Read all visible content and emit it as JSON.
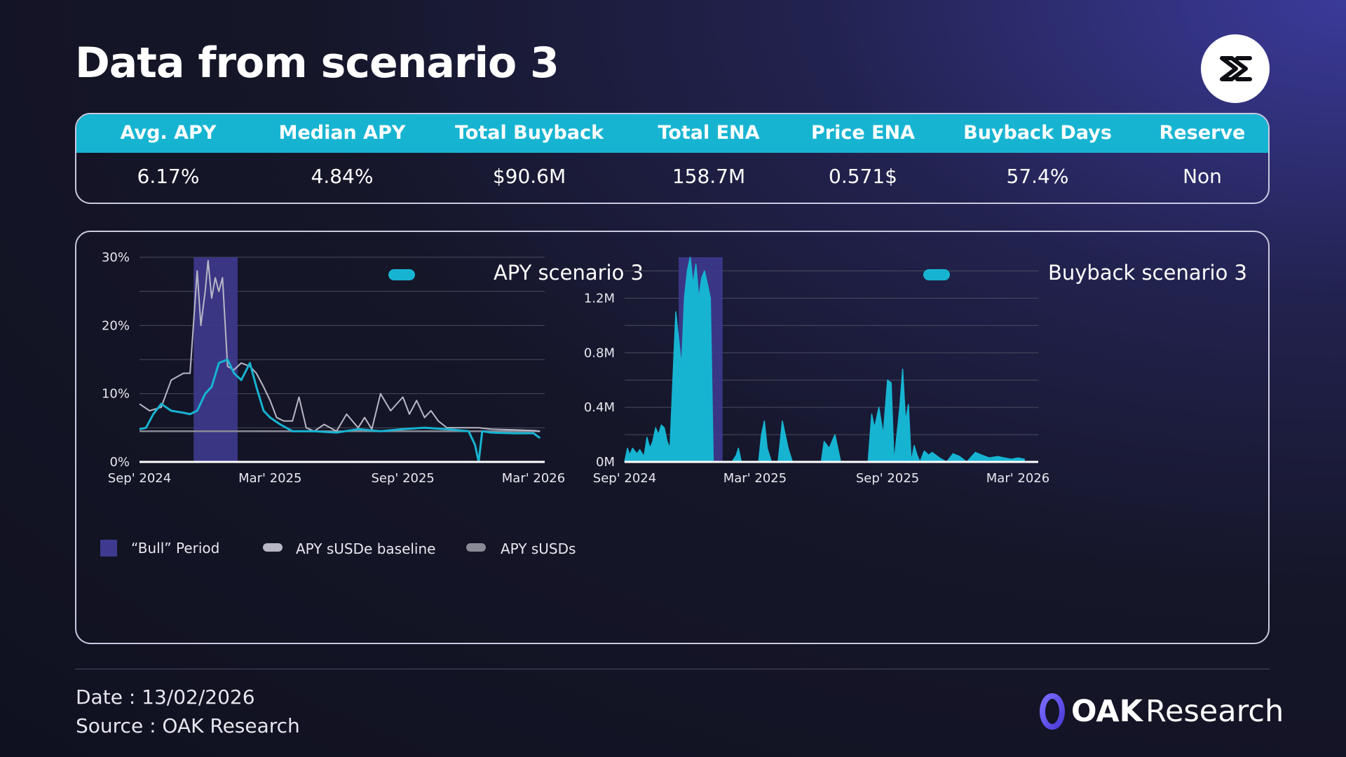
{
  "title": "Data from scenario 3",
  "logo_icon": "sigma-logo-icon",
  "stats": {
    "headers": [
      "Avg. APY",
      "Median APY",
      "Total Buyback",
      "Total ENA",
      "Price ENA",
      "Buyback Days",
      "Reserve"
    ],
    "values": [
      "6.17%",
      "4.84%",
      "$90.6M",
      "158.7M",
      "0.571$",
      "57.4%",
      "Non"
    ]
  },
  "colors": {
    "accent": "#17b4d2",
    "bull": "#3e3a8f",
    "baseline": "#b7b7c6",
    "susds": "#8a8a96",
    "background": "#151628"
  },
  "chart_data": [
    {
      "type": "line",
      "legend": "APY scenario 3",
      "x_ticks": [
        "Sep' 2024",
        "Mar' 2025",
        "Sep' 2025",
        "Mar' 2026"
      ],
      "y_ticks": [
        "0%",
        "10%",
        "20%",
        "30%"
      ],
      "ylim": [
        0,
        30
      ],
      "bull_period": [
        "2024-11-15",
        "2025-01-15"
      ],
      "series": [
        {
          "name": "APY scenario 3",
          "color": "#17b4d2",
          "x": [
            "2024-09-01",
            "2024-09-10",
            "2024-09-20",
            "2024-10-01",
            "2024-10-15",
            "2024-11-01",
            "2024-11-10",
            "2024-11-20",
            "2024-12-01",
            "2024-12-10",
            "2024-12-20",
            "2025-01-01",
            "2025-01-10",
            "2025-01-20",
            "2025-02-01",
            "2025-02-10",
            "2025-02-20",
            "2025-03-01",
            "2025-03-15",
            "2025-04-01",
            "2025-05-01",
            "2025-06-01",
            "2025-07-01",
            "2025-08-01",
            "2025-09-01",
            "2025-10-01",
            "2025-11-01",
            "2025-12-01",
            "2025-12-10",
            "2025-12-15",
            "2025-12-20",
            "2026-01-01",
            "2026-02-01",
            "2026-03-01",
            "2026-03-10"
          ],
          "values": [
            4.8,
            5.0,
            7.0,
            8.5,
            7.5,
            7.2,
            7.0,
            7.5,
            10.0,
            11.0,
            14.5,
            15.0,
            13.0,
            12.0,
            14.5,
            11.0,
            7.5,
            6.5,
            5.5,
            4.5,
            4.5,
            4.3,
            4.8,
            4.5,
            4.8,
            5.0,
            4.8,
            4.5,
            2.5,
            0.0,
            4.5,
            4.3,
            4.2,
            4.2,
            3.5
          ]
        },
        {
          "name": "APY sUSDe baseline",
          "color": "#b7b7c6",
          "x": [
            "2024-09-01",
            "2024-09-15",
            "2024-10-01",
            "2024-10-15",
            "2024-11-01",
            "2024-11-10",
            "2024-11-20",
            "2024-11-25",
            "2024-12-01",
            "2024-12-05",
            "2024-12-10",
            "2024-12-15",
            "2024-12-20",
            "2024-12-25",
            "2025-01-01",
            "2025-01-10",
            "2025-01-20",
            "2025-02-01",
            "2025-02-10",
            "2025-02-20",
            "2025-03-01",
            "2025-03-10",
            "2025-03-20",
            "2025-04-01",
            "2025-04-10",
            "2025-04-20",
            "2025-05-01",
            "2025-05-15",
            "2025-06-01",
            "2025-06-15",
            "2025-07-01",
            "2025-07-10",
            "2025-07-20",
            "2025-08-01",
            "2025-08-15",
            "2025-09-01",
            "2025-09-10",
            "2025-09-20",
            "2025-10-01",
            "2025-10-10",
            "2025-10-20",
            "2025-11-01",
            "2025-11-15",
            "2025-12-01",
            "2025-12-15",
            "2026-01-01",
            "2026-02-01",
            "2026-03-01",
            "2026-03-10"
          ],
          "values": [
            8.5,
            7.5,
            8.0,
            12.0,
            13.0,
            13.0,
            28.0,
            20.0,
            25.0,
            29.5,
            24.0,
            27.0,
            25.0,
            27.0,
            14.0,
            13.5,
            14.5,
            14.0,
            13.0,
            11.0,
            9.0,
            6.5,
            6.0,
            6.0,
            9.5,
            5.0,
            4.5,
            5.5,
            4.5,
            7.0,
            5.0,
            6.5,
            4.8,
            10.0,
            7.5,
            9.5,
            7.0,
            9.0,
            6.5,
            7.5,
            6.0,
            5.0,
            5.0,
            5.0,
            5.0,
            4.8,
            4.7,
            4.6,
            4.5
          ]
        },
        {
          "name": "APY sUSDs",
          "color": "#8a8a96",
          "x": [
            "2024-09-01",
            "2024-12-01",
            "2025-03-01",
            "2025-06-01",
            "2025-09-01",
            "2025-12-01",
            "2026-03-10"
          ],
          "values": [
            4.5,
            4.5,
            4.5,
            4.5,
            4.5,
            4.5,
            4.5
          ]
        }
      ]
    },
    {
      "type": "area",
      "legend": "Buyback scenario 3",
      "x_ticks": [
        "Sep' 2024",
        "Mar' 2025",
        "Sep' 2025",
        "Mar' 2026"
      ],
      "y_ticks": [
        "0M",
        "0.4M",
        "0.8M",
        "1.2M"
      ],
      "ylim": [
        0,
        1.5
      ],
      "bull_period": [
        "2024-11-15",
        "2025-01-15"
      ],
      "series": [
        {
          "name": "Buyback scenario 3",
          "color": "#17b4d2",
          "x": [
            "2024-09-01",
            "2024-09-05",
            "2024-09-08",
            "2024-09-12",
            "2024-09-18",
            "2024-09-22",
            "2024-09-28",
            "2024-10-02",
            "2024-10-06",
            "2024-10-10",
            "2024-10-14",
            "2024-10-18",
            "2024-10-22",
            "2024-10-26",
            "2024-10-30",
            "2024-11-03",
            "2024-11-07",
            "2024-11-11",
            "2024-11-15",
            "2024-11-19",
            "2024-11-23",
            "2024-11-27",
            "2024-12-01",
            "2024-12-05",
            "2024-12-09",
            "2024-12-13",
            "2024-12-17",
            "2024-12-21",
            "2024-12-25",
            "2024-12-29",
            "2025-01-02",
            "2025-01-06",
            "2025-01-10",
            "2025-01-14",
            "2025-01-20",
            "2025-01-28",
            "2025-02-03",
            "2025-02-06",
            "2025-02-10",
            "2025-02-20",
            "2025-02-28",
            "2025-03-06",
            "2025-03-10",
            "2025-03-14",
            "2025-03-18",
            "2025-03-24",
            "2025-04-02",
            "2025-04-08",
            "2025-04-12",
            "2025-04-16",
            "2025-04-22",
            "2025-05-02",
            "2025-05-15",
            "2025-06-01",
            "2025-06-05",
            "2025-06-12",
            "2025-06-20",
            "2025-06-28",
            "2025-07-02",
            "2025-07-15",
            "2025-07-28",
            "2025-08-05",
            "2025-08-10",
            "2025-08-14",
            "2025-08-20",
            "2025-08-26",
            "2025-09-01",
            "2025-09-06",
            "2025-09-10",
            "2025-09-14",
            "2025-09-18",
            "2025-09-22",
            "2025-09-26",
            "2025-09-30",
            "2025-10-04",
            "2025-10-08",
            "2025-10-12",
            "2025-10-16",
            "2025-10-22",
            "2025-10-28",
            "2025-11-02",
            "2025-11-12",
            "2025-11-22",
            "2025-12-01",
            "2025-12-10",
            "2025-12-20",
            "2026-01-01",
            "2026-01-10",
            "2026-01-20",
            "2026-02-01",
            "2026-02-10",
            "2026-02-20",
            "2026-03-01",
            "2026-03-10"
          ],
          "values": [
            0,
            0.1,
            0.05,
            0.1,
            0.06,
            0.09,
            0.04,
            0.18,
            0.1,
            0.15,
            0.25,
            0.2,
            0.27,
            0.25,
            0.15,
            0.1,
            0.6,
            1.1,
            0.9,
            0.7,
            1.2,
            1.4,
            1.5,
            1.3,
            1.45,
            1.2,
            1.35,
            1.4,
            1.3,
            1.2,
            0.0,
            0.0,
            0.0,
            0.0,
            0.0,
            0.0,
            0.05,
            0.1,
            0.0,
            0.0,
            0.0,
            0.0,
            0.2,
            0.3,
            0.1,
            0.0,
            0.0,
            0.3,
            0.2,
            0.1,
            0.0,
            0.0,
            0.0,
            0.0,
            0.15,
            0.1,
            0.2,
            0.0,
            0.0,
            0.0,
            0.0,
            0.0,
            0.35,
            0.25,
            0.4,
            0.2,
            0.6,
            0.58,
            0.0,
            0.2,
            0.4,
            0.68,
            0.3,
            0.42,
            0.0,
            0.12,
            0.05,
            0.0,
            0.08,
            0.05,
            0.07,
            0.03,
            0.0,
            0.06,
            0.04,
            0.0,
            0.07,
            0.05,
            0.03,
            0.04,
            0.03,
            0.02,
            0.03,
            0.02
          ]
        }
      ]
    }
  ],
  "legend": {
    "bull": "“Bull” Period",
    "baseline": "APY sUSDe baseline",
    "susds": "APY sUSDs"
  },
  "footer": {
    "date": "Date : 13/02/2026",
    "source": "Source : OAK Research",
    "brand_oak": "OAK",
    "brand_research": "Research"
  }
}
